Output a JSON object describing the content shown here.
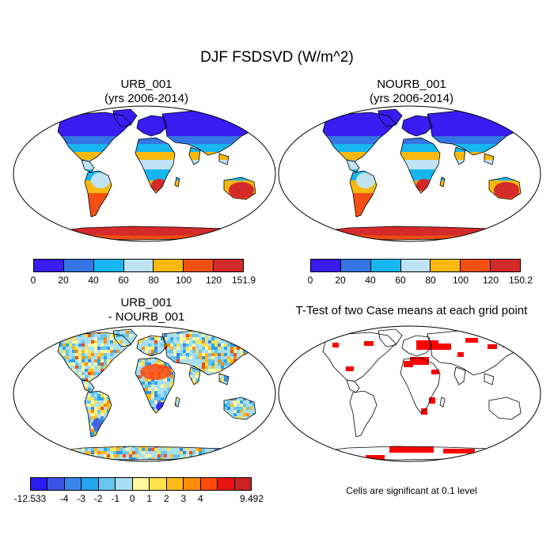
{
  "main_title": "DJF FSDSVD (W/m^2)",
  "panels": {
    "urb": {
      "title_line1": "URB_001",
      "title_line2": "(yrs 2006-2014)",
      "colorbar": {
        "colors": [
          "#3a1bf2",
          "#3575e3",
          "#17b6ee",
          "#bfe3f3",
          "#f7b90e",
          "#f34f13",
          "#d42a2a"
        ],
        "labels": [
          "0",
          "20",
          "40",
          "60",
          "80",
          "100",
          "120",
          "151.9"
        ]
      }
    },
    "nourb": {
      "title_line1": "NOURB_001",
      "title_line2": "(yrs 2006-2014)",
      "colorbar": {
        "colors": [
          "#3a1bf2",
          "#3575e3",
          "#17b6ee",
          "#bfe3f3",
          "#f7b90e",
          "#f34f13",
          "#d42a2a"
        ],
        "labels": [
          "0",
          "20",
          "40",
          "60",
          "80",
          "100",
          "120",
          "150.2"
        ]
      }
    },
    "diff": {
      "title_line1": "URB_001",
      "title_line2": "- NOURB_001",
      "colorbar": {
        "colors": [
          "#2a1cf2",
          "#3a52e6",
          "#3a86e8",
          "#26a6f0",
          "#66c6f0",
          "#a9dff2",
          "#fff8a0",
          "#ffe14a",
          "#ffba1a",
          "#ff8c0a",
          "#ff4a08",
          "#e81212",
          "#c82222"
        ],
        "labels": [
          "-12.533",
          "-4",
          "-3",
          "-2",
          "-1",
          "0",
          "1",
          "2",
          "3",
          "4",
          "9.492"
        ]
      }
    },
    "ttest": {
      "title": "T-Test of two Case means at each grid point",
      "note": "Cells are significant at 0.1 level",
      "significant_color": "#ff0000"
    }
  }
}
